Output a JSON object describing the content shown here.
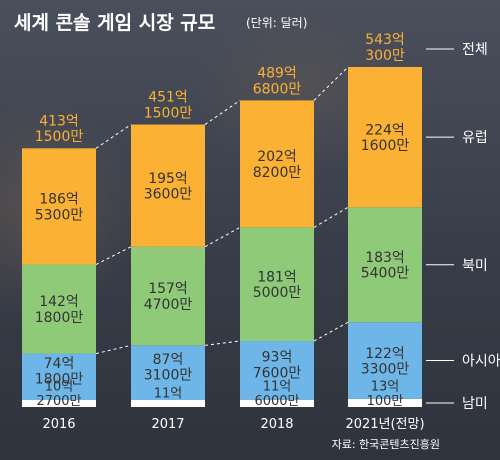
{
  "title": "세계 콘솔 게임 시장 규모",
  "unit": "(단위: 달러)",
  "source": "자료: 한국콘텐츠진흥원",
  "colors": {
    "europe": "#fbb134",
    "north_america": "#8fca78",
    "asia": "#6fb6e8",
    "south_america": "#ffffff",
    "total_label": "#fbb134",
    "segment_label": "#333333"
  },
  "chart_data": {
    "type": "bar",
    "stacked": true,
    "categories": [
      "2016",
      "2017",
      "2018",
      "2021년(전망)"
    ],
    "value_unit": "억 달러",
    "series": [
      {
        "name": "남미",
        "key": "south_america",
        "values": [
          10.27,
          11,
          11.6,
          13.01
        ],
        "labels": [
          [
            "10억",
            "2700만"
          ],
          [
            "11억"
          ],
          [
            "11억",
            "6000만"
          ],
          [
            "13억",
            "100만"
          ]
        ]
      },
      {
        "name": "아시아",
        "key": "asia",
        "values": [
          74.18,
          87.31,
          93.76,
          122.33
        ],
        "labels": [
          [
            "74억",
            "1800만"
          ],
          [
            "87억",
            "3100만"
          ],
          [
            "93억",
            "7600만"
          ],
          [
            "122억",
            "3300만"
          ]
        ]
      },
      {
        "name": "북미",
        "key": "north_america",
        "values": [
          142.18,
          157.47,
          181.5,
          183.54
        ],
        "labels": [
          [
            "142억",
            "1800만"
          ],
          [
            "157억",
            "4700만"
          ],
          [
            "181억",
            "5000만"
          ],
          [
            "183억",
            "5400만"
          ]
        ]
      },
      {
        "name": "유럽",
        "key": "europe",
        "values": [
          186.53,
          195.36,
          202.82,
          224.16
        ],
        "labels": [
          [
            "186억",
            "5300만"
          ],
          [
            "195억",
            "3600만"
          ],
          [
            "202억",
            "8200만"
          ],
          [
            "224억",
            "1600만"
          ]
        ]
      }
    ],
    "totals": {
      "name": "전체",
      "values": [
        413.15,
        451.15,
        489.68,
        543.03
      ],
      "labels": [
        [
          "413억",
          "1500만"
        ],
        [
          "451억",
          "1500만"
        ],
        [
          "489억",
          "6800만"
        ],
        [
          "543억",
          "300만"
        ]
      ]
    },
    "ylim": [
      0,
      543.03
    ],
    "legend_position": "right"
  }
}
